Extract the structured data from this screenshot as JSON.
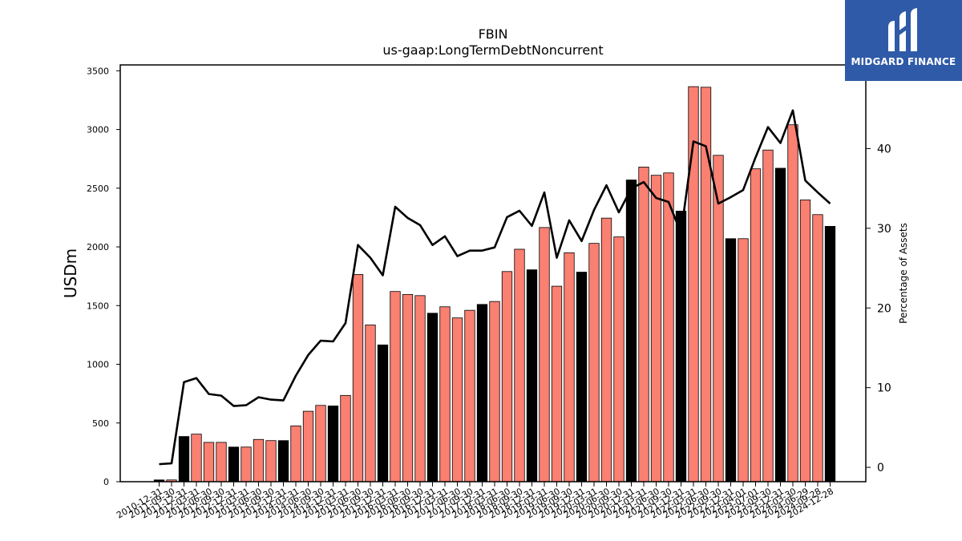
{
  "brand": {
    "name": "MIDGARD FINANCE",
    "bg_color": "#2f5aa8",
    "icon": "midgard-logo-mark"
  },
  "chart_data": {
    "type": "bar",
    "title": "FBIN",
    "subtitle": "us-gaap:LongTermDebtNoncurrent",
    "ylabel": "USDm",
    "ylabel_right": "Percentage of Assets",
    "ylim": [
      0,
      3550
    ],
    "ylim_right": [
      -1.8,
      50.5
    ],
    "yticks": [
      0,
      500,
      1000,
      1500,
      2000,
      2500,
      3000,
      3500
    ],
    "yticks_right": [
      0,
      10,
      20,
      30,
      40
    ],
    "grid": false,
    "colors": {
      "annual_bar": "#000000",
      "quarter_bar": "#fa8072",
      "line": "#000000"
    },
    "categories": [
      "2010-12-31",
      "2011-09-30",
      "2011-12-31",
      "2012-03-31",
      "2012-06-30",
      "2012-09-30",
      "2012-12-31",
      "2013-03-31",
      "2013-06-30",
      "2013-09-30",
      "2013-12-31",
      "2014-03-31",
      "2014-06-30",
      "2014-09-30",
      "2014-12-31",
      "2015-03-31",
      "2015-06-30",
      "2015-09-30",
      "2015-12-31",
      "2016-03-31",
      "2016-06-30",
      "2016-09-30",
      "2016-12-31",
      "2017-03-31",
      "2017-06-30",
      "2017-09-30",
      "2017-12-31",
      "2018-03-31",
      "2018-06-30",
      "2018-09-30",
      "2018-12-31",
      "2019-03-31",
      "2019-06-30",
      "2019-09-30",
      "2019-12-31",
      "2020-03-31",
      "2020-06-30",
      "2020-09-30",
      "2020-12-31",
      "2021-03-31",
      "2021-06-30",
      "2021-09-30",
      "2021-12-31",
      "2022-03-31",
      "2022-06-30",
      "2022-09-30",
      "2022-12-31",
      "2023-04-01",
      "2023-07-01",
      "2023-09-30",
      "2023-12-31",
      "2024-03-30",
      "2024-06-29",
      "2024-09-28",
      "2024-12-28"
    ],
    "tick_labels": [
      "2010-12-31",
      "2011-09-30",
      "2011-12-31",
      "2012-03-31",
      "2012-06-30",
      "2012-09-30",
      "2012-12-31",
      "2013-03-31",
      "2013-06-30",
      "2013-09-30",
      "2013-12-31",
      "2014-03-31",
      "2014-06-30",
      "2014-09-30",
      "2014-12-31",
      "2015-03-31",
      "2015-06-30",
      "2015-09-30",
      "2015-12-31",
      "2016-03-31",
      "2016-06-30",
      "2016-09-30",
      "2016-12-31",
      "2017-03-31",
      "2017-06-30",
      "2017-09-30",
      "2017-12-31",
      "2018-03-31",
      "2018-06-30",
      "2018-09-30",
      "2018-12-31",
      "2019-03-31",
      "2019-06-30",
      "2019-09-30",
      "2019-12-31",
      "2020-03-31",
      "2020-06-30",
      "2020-09-30",
      "2020-12-31",
      "2021-03-31",
      "2021-06-30",
      "2021-09-30",
      "2021-12-31",
      "2022-03-31",
      "2022-06-30",
      "2022-09-30",
      "2022-12-31",
      "2023-04-01",
      "2023-07-01",
      "2023-09-30",
      "2023-12-31",
      "2024-03-30",
      "2024-06-29",
      "2024-09-28",
      "2024-12-28"
    ],
    "series": [
      {
        "kind": "bar",
        "values": [
          15,
          15,
          385,
          405,
          335,
          335,
          295,
          295,
          360,
          350,
          350,
          475,
          600,
          650,
          645,
          735,
          1765,
          1335,
          1165,
          1620,
          1595,
          1585,
          1435,
          1490,
          1395,
          1460,
          1510,
          1535,
          1790,
          1980,
          1805,
          2165,
          1665,
          1950,
          1785,
          2030,
          2245,
          2085,
          2570,
          2680,
          2610,
          2630,
          2305,
          3365,
          3360,
          2780,
          2070,
          2070,
          2665,
          2825,
          2670,
          3040,
          2400,
          2275,
          2175
        ]
      },
      {
        "kind": "line",
        "axis": "right",
        "values": [
          0.4,
          0.5,
          10.7,
          11.2,
          9.2,
          9.0,
          7.7,
          7.8,
          8.8,
          8.5,
          8.4,
          11.5,
          14.1,
          15.9,
          15.8,
          18.1,
          27.9,
          26.3,
          24.1,
          32.7,
          31.3,
          30.4,
          27.9,
          29.0,
          26.5,
          27.2,
          27.2,
          27.6,
          31.4,
          32.2,
          30.3,
          34.5,
          26.3,
          31.0,
          28.4,
          32.3,
          35.4,
          32.0,
          35.0,
          35.8,
          33.8,
          33.3,
          29.4,
          40.9,
          40.3,
          33.1,
          33.9,
          34.8,
          38.9,
          42.7,
          40.7,
          44.8,
          36.0,
          34.5,
          33.1
        ]
      }
    ],
    "annual_flags": [
      1,
      0,
      1,
      0,
      0,
      0,
      1,
      0,
      0,
      0,
      1,
      0,
      0,
      0,
      1,
      0,
      0,
      0,
      1,
      0,
      0,
      0,
      1,
      0,
      0,
      0,
      1,
      0,
      0,
      0,
      1,
      0,
      0,
      0,
      1,
      0,
      0,
      0,
      1,
      0,
      0,
      0,
      1,
      0,
      0,
      0,
      1,
      0,
      0,
      0,
      1,
      0,
      0,
      0,
      1
    ]
  }
}
